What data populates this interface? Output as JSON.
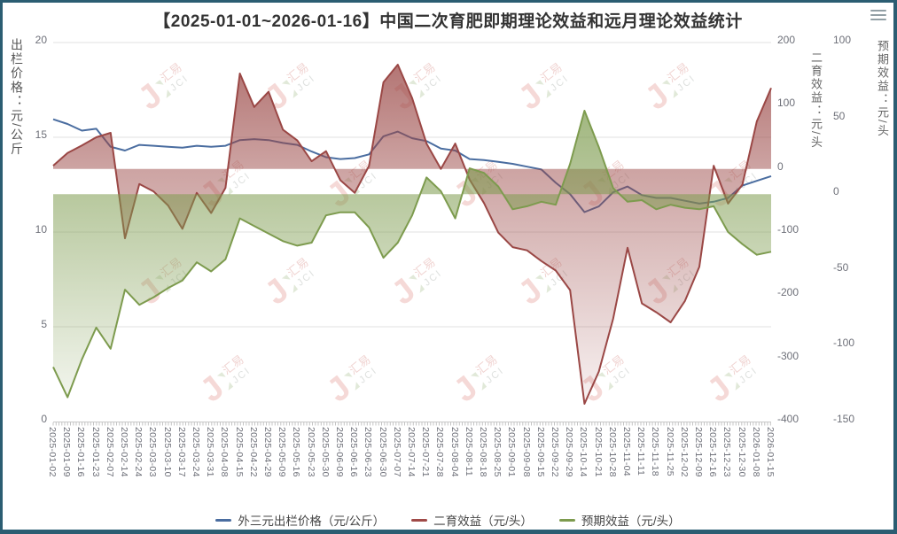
{
  "window": {
    "menu_icon": "hamburger-menu"
  },
  "chart_data": {
    "type": "line",
    "title": "【2025-01-01~2026-01-16】中国二次育肥即期理论效益和远月理论效益统计",
    "x": [
      "2025-01-02",
      "2025-01-09",
      "2025-01-16",
      "2025-01-23",
      "2025-02-07",
      "2025-02-14",
      "2025-02-24",
      "2025-03-03",
      "2025-03-10",
      "2025-03-17",
      "2025-03-24",
      "2025-03-31",
      "2025-04-08",
      "2025-04-15",
      "2025-04-22",
      "2025-04-29",
      "2025-05-09",
      "2025-05-16",
      "2025-05-23",
      "2025-05-30",
      "2025-06-09",
      "2025-06-16",
      "2025-06-23",
      "2025-06-30",
      "2025-07-07",
      "2025-07-14",
      "2025-07-21",
      "2025-07-28",
      "2025-08-04",
      "2025-08-11",
      "2025-08-18",
      "2025-08-25",
      "2025-09-01",
      "2025-09-08",
      "2025-09-15",
      "2025-09-22",
      "2025-09-29",
      "2025-10-14",
      "2025-10-21",
      "2025-10-28",
      "2025-11-04",
      "2025-11-11",
      "2025-11-18",
      "2025-11-25",
      "2025-12-02",
      "2025-12-09",
      "2025-12-16",
      "2025-12-23",
      "2025-12-30",
      "2026-01-08",
      "2026-01-15"
    ],
    "series": [
      {
        "name": "外三元出栏价格（元/公斤）",
        "axis": "left",
        "style": "line",
        "color": "#4a6da0",
        "values": [
          15.95,
          15.7,
          15.35,
          15.45,
          14.5,
          14.3,
          14.6,
          14.55,
          14.5,
          14.45,
          14.55,
          14.5,
          14.55,
          14.85,
          14.9,
          14.85,
          14.7,
          14.6,
          14.25,
          13.95,
          13.85,
          13.9,
          14.1,
          15.05,
          15.3,
          14.95,
          14.8,
          14.4,
          14.3,
          13.85,
          13.8,
          13.7,
          13.6,
          13.45,
          13.3,
          12.6,
          12.0,
          11.05,
          11.35,
          12.1,
          12.4,
          11.95,
          11.8,
          11.8,
          11.65,
          11.5,
          11.6,
          11.8,
          12.45,
          12.7,
          12.95
        ]
      },
      {
        "name": "二育效益（元/头）",
        "axis": "right1",
        "style": "area",
        "color": "#9a4745",
        "values": [
          5,
          25,
          37,
          50,
          57,
          -110,
          -24,
          -36,
          -58,
          -95,
          -38,
          -70,
          -30,
          151,
          98,
          122,
          62,
          45,
          12,
          28,
          -18,
          -38,
          5,
          137,
          165,
          112,
          40,
          0,
          40,
          -17,
          -54,
          -101,
          -124,
          -129,
          -146,
          -161,
          -192,
          -372,
          -321,
          -237,
          -125,
          -213,
          -227,
          -243,
          -209,
          -155,
          5,
          -55,
          -25,
          75,
          128
        ]
      },
      {
        "name": "预期效益（元/头）",
        "axis": "right2",
        "style": "area",
        "color": "#7d9b4e",
        "values": [
          -114,
          -134,
          -109,
          -88,
          -102,
          -63,
          -73,
          -68,
          -62,
          -57,
          -45,
          -51,
          -43,
          -16,
          -21,
          -26,
          -31,
          -34,
          -32,
          -14,
          -12,
          -12,
          -22,
          -42,
          -32,
          -14,
          11,
          2,
          -16,
          17,
          14,
          5,
          -10,
          -8,
          -5,
          -7,
          20,
          55,
          31,
          4,
          -5,
          -4,
          -10,
          -7,
          -9,
          -10,
          -8,
          -25,
          -33,
          -40,
          -38
        ]
      }
    ],
    "axes": {
      "left": {
        "name": "出栏价格：元/公斤",
        "min": 0,
        "max": 20,
        "ticks": [
          20,
          15,
          10,
          5,
          0
        ]
      },
      "right1": {
        "name": "二育效益：元/头",
        "min": -400,
        "max": 200,
        "ticks": [
          200,
          100,
          0,
          -100,
          -200,
          -300,
          -400
        ]
      },
      "right2": {
        "name": "预期效益：元/头",
        "min": -150,
        "max": 100,
        "ticks": [
          100,
          50,
          0,
          -50,
          -100,
          -150
        ]
      }
    },
    "legend": [
      {
        "label": "外三元出栏价格（元/公斤）",
        "color": "#4a6da0"
      },
      {
        "label": "二育效益（元/头）",
        "color": "#a04a48"
      },
      {
        "label": "预期效益（元/头）",
        "color": "#7d9b4e"
      }
    ],
    "grid": true,
    "legend_position": "bottom",
    "watermark": {
      "cn": "汇易",
      "en": "JCI"
    }
  }
}
